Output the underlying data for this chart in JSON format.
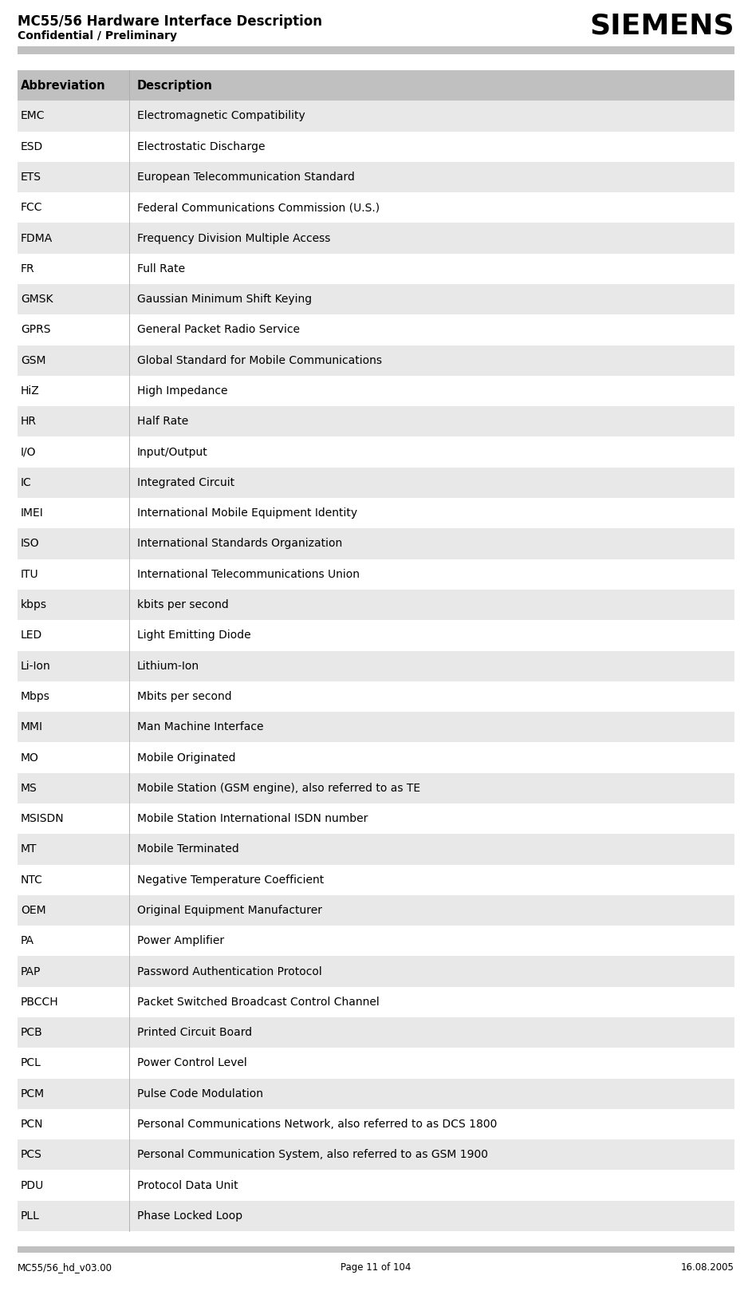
{
  "title_line1": "MC55/56 Hardware Interface Description",
  "title_line2": "Confidential / Preliminary",
  "siemens_logo": "SIEMENS",
  "footer_left": "MC55/56_hd_v03.00",
  "footer_center": "Page 11 of 104",
  "footer_right": "16.08.2005",
  "header_bg": "#c0c0c0",
  "row_bg_even": "#e8e8e8",
  "row_bg_odd": "#ffffff",
  "col1_header": "Abbreviation",
  "col2_header": "Description",
  "rows": [
    [
      "EMC",
      "Electromagnetic Compatibility"
    ],
    [
      "ESD",
      "Electrostatic Discharge"
    ],
    [
      "ETS",
      "European Telecommunication Standard"
    ],
    [
      "FCC",
      "Federal Communications Commission (U.S.)"
    ],
    [
      "FDMA",
      "Frequency Division Multiple Access"
    ],
    [
      "FR",
      "Full Rate"
    ],
    [
      "GMSK",
      "Gaussian Minimum Shift Keying"
    ],
    [
      "GPRS",
      "General Packet Radio Service"
    ],
    [
      "GSM",
      "Global Standard for Mobile Communications"
    ],
    [
      "HiZ",
      "High Impedance"
    ],
    [
      "HR",
      "Half Rate"
    ],
    [
      "I/O",
      "Input/Output"
    ],
    [
      "IC",
      "Integrated Circuit"
    ],
    [
      "IMEI",
      "International Mobile Equipment Identity"
    ],
    [
      "ISO",
      "International Standards Organization"
    ],
    [
      "ITU",
      "International Telecommunications Union"
    ],
    [
      "kbps",
      "kbits per second"
    ],
    [
      "LED",
      "Light Emitting Diode"
    ],
    [
      "Li-Ion",
      "Lithium-Ion"
    ],
    [
      "Mbps",
      "Mbits per second"
    ],
    [
      "MMI",
      "Man Machine Interface"
    ],
    [
      "MO",
      "Mobile Originated"
    ],
    [
      "MS",
      "Mobile Station (GSM engine), also referred to as TE"
    ],
    [
      "MSISDN",
      "Mobile Station International ISDN number"
    ],
    [
      "MT",
      "Mobile Terminated"
    ],
    [
      "NTC",
      "Negative Temperature Coefficient"
    ],
    [
      "OEM",
      "Original Equipment Manufacturer"
    ],
    [
      "PA",
      "Power Amplifier"
    ],
    [
      "PAP",
      "Password Authentication Protocol"
    ],
    [
      "PBCCH",
      "Packet Switched Broadcast Control Channel"
    ],
    [
      "PCB",
      "Printed Circuit Board"
    ],
    [
      "PCL",
      "Power Control Level"
    ],
    [
      "PCM",
      "Pulse Code Modulation"
    ],
    [
      "PCN",
      "Personal Communications Network, also referred to as DCS 1800"
    ],
    [
      "PCS",
      "Personal Communication System, also referred to as GSM 1900"
    ],
    [
      "PDU",
      "Protocol Data Unit"
    ],
    [
      "PLL",
      "Phase Locked Loop"
    ]
  ]
}
